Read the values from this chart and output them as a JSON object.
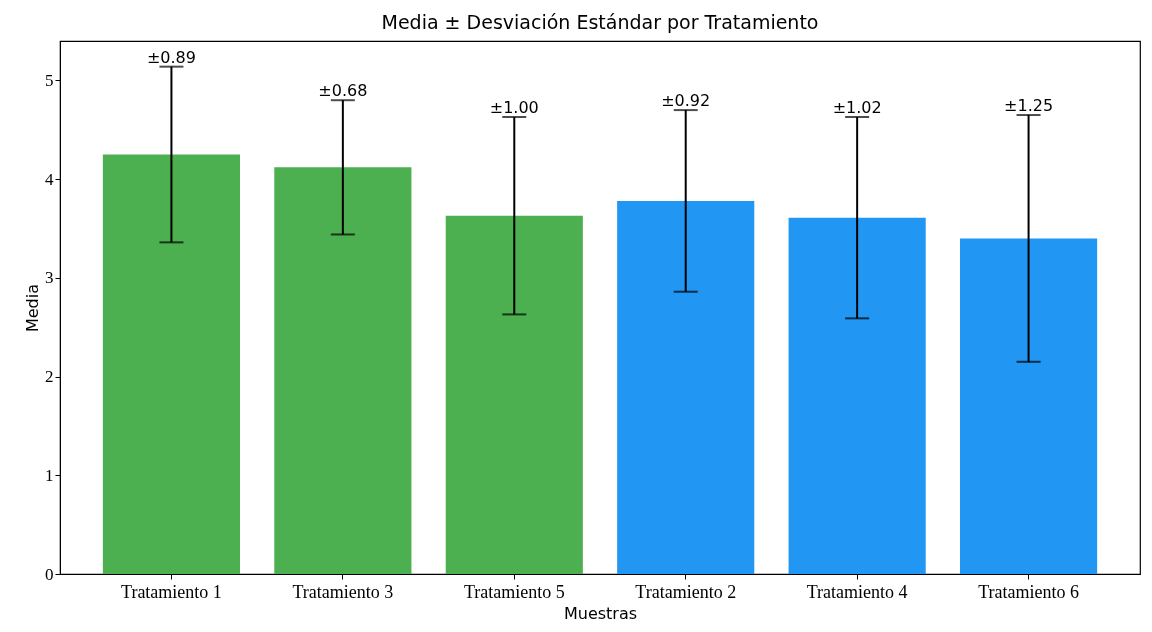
{
  "chart_data": {
    "type": "bar",
    "title": "Media ± Desviación Estándar por Tratamiento",
    "xlabel": "Muestras",
    "ylabel": "Media",
    "categories": [
      "Tratamiento 1",
      "Tratamiento 3",
      "Tratamiento 5",
      "Tratamiento 2",
      "Tratamiento 4",
      "Tratamiento 6"
    ],
    "values": [
      4.25,
      4.12,
      3.63,
      3.78,
      3.61,
      3.4
    ],
    "colors": [
      "#4caf50",
      "#4caf50",
      "#4caf50",
      "#2196f3",
      "#2196f3",
      "#2196f3"
    ],
    "errors": [
      0.89,
      0.68,
      1.0,
      0.92,
      1.02,
      1.25
    ],
    "annotations": [
      {
        "text": "±0.89",
        "x": "Tratamiento 1",
        "y": 5.14
      },
      {
        "text": "±0.68",
        "x": "Tratamiento 3",
        "y": 4.8
      },
      {
        "text": "±1.00",
        "x": "Tratamiento 5",
        "y": 4.63
      },
      {
        "text": "±0.92",
        "x": "Tratamiento 2",
        "y": 4.7
      },
      {
        "text": "±1.02",
        "x": "Tratamiento 4",
        "y": 4.63
      },
      {
        "text": "±1.25",
        "x": "Tratamiento 6",
        "y": 4.65
      }
    ],
    "ylim": [
      0,
      5.4
    ],
    "yticks": [
      0,
      1,
      2,
      3,
      4,
      5
    ],
    "grid": false
  }
}
